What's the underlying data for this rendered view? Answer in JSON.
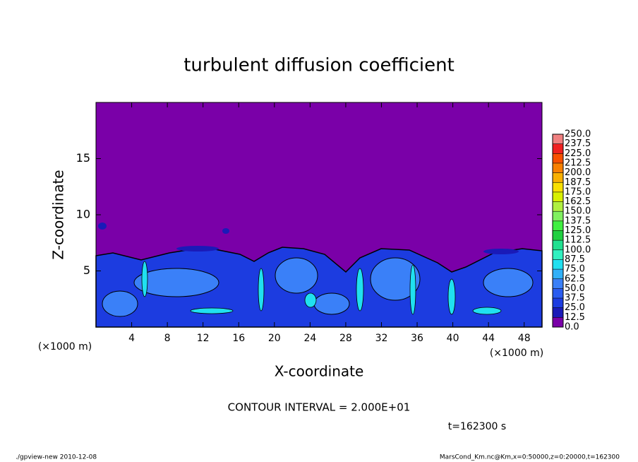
{
  "chart_data": {
    "type": "contour",
    "title": "turbulent diffusion coefficient",
    "xlabel": "X-coordinate",
    "ylabel": "Z-coordinate",
    "xunit": "(×1000 m)",
    "yunit": "(×1000 m)",
    "xlim": [
      0,
      50
    ],
    "ylim": [
      0,
      20
    ],
    "xticks": [
      4,
      8,
      12,
      16,
      20,
      24,
      28,
      32,
      36,
      40,
      44,
      48
    ],
    "yticks": [
      5,
      10,
      15
    ],
    "colorbar": {
      "levels": [
        {
          "value": 0,
          "label": "0.0"
        },
        {
          "value": 12.5,
          "label": "12.5"
        },
        {
          "value": 25,
          "label": "25.0"
        },
        {
          "value": 37.5,
          "label": "37.5"
        },
        {
          "value": 50,
          "label": "50.0"
        },
        {
          "value": 62.5,
          "label": "62.5"
        },
        {
          "value": 75,
          "label": "75.0"
        },
        {
          "value": 87.5,
          "label": "87.5"
        },
        {
          "value": 100,
          "label": "100.0"
        },
        {
          "value": 112.5,
          "label": "112.5"
        },
        {
          "value": 125,
          "label": "125.0"
        },
        {
          "value": 137.5,
          "label": "137.5"
        },
        {
          "value": 150,
          "label": "150.0"
        },
        {
          "value": 162.5,
          "label": "162.5"
        },
        {
          "value": 175,
          "label": "175.0"
        },
        {
          "value": 187.5,
          "label": "187.5"
        },
        {
          "value": 200,
          "label": "200.0"
        },
        {
          "value": 212.5,
          "label": "212.5"
        },
        {
          "value": 225,
          "label": "225.0"
        },
        {
          "value": 237.5,
          "label": "237.5"
        },
        {
          "value": 250,
          "label": "250.0"
        }
      ],
      "colors": [
        "#7a00a8",
        "#1a1ab8",
        "#1c3ce0",
        "#2a5cf0",
        "#3a80f8",
        "#30b0f8",
        "#20e0f0",
        "#30f0c0",
        "#20e090",
        "#20d040",
        "#40f040",
        "#80f060",
        "#b0f040",
        "#d8f000",
        "#f8e000",
        "#f8b000",
        "#f88000",
        "#f85000",
        "#f02020",
        "#f08080"
      ]
    },
    "contour_interval": "CONTOUR INTERVAL = 2.000E+01",
    "time_label": "t=162300 s",
    "footer_left": "./gpview-new  2010-12-08",
    "footer_right": "MarsCond_Km.nc@Km,x=0:50000,z=0:20000,t=162300"
  }
}
